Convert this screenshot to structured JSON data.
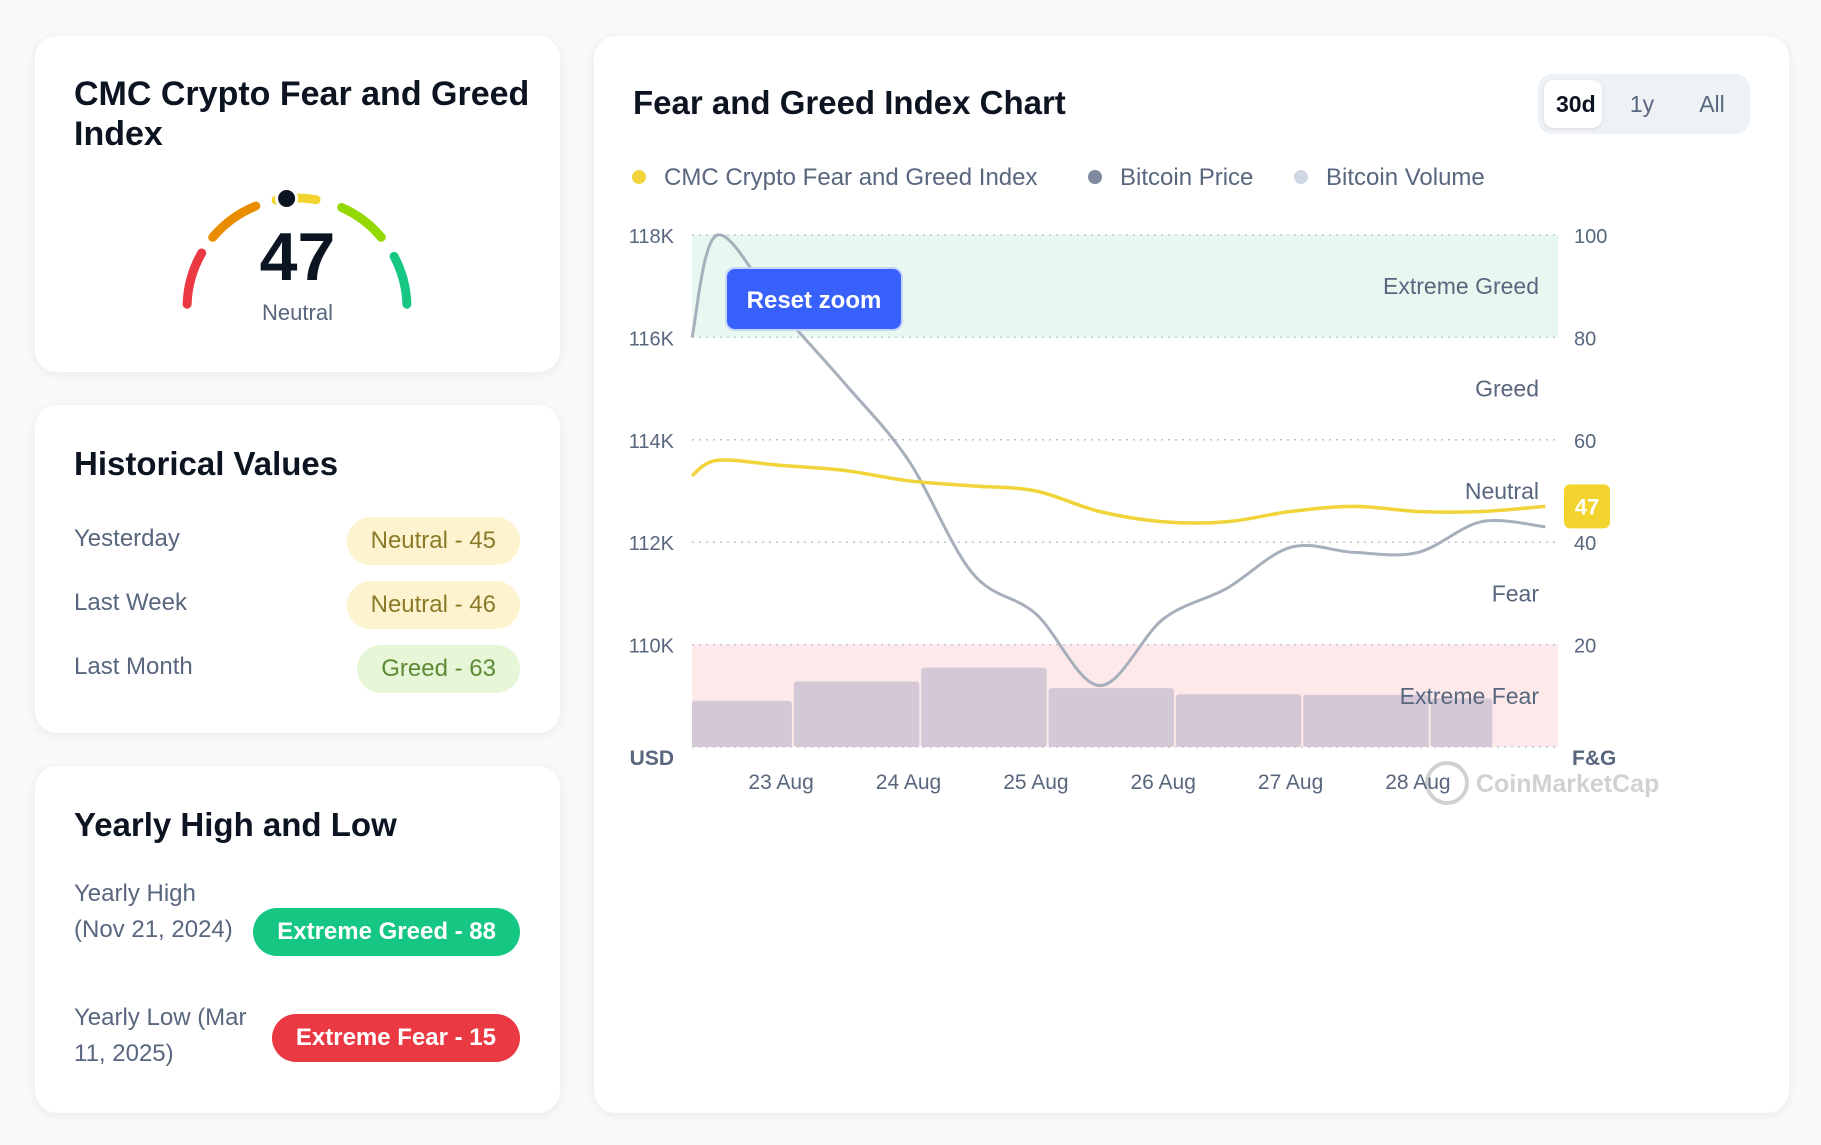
{
  "gauge_card": {
    "title": "CMC Crypto Fear and Greed Index",
    "value": "47",
    "label": "Neutral",
    "value_fraction": 0.47
  },
  "historical": {
    "title": "Historical Values",
    "rows": [
      {
        "label": "Yesterday",
        "value": "Neutral - 45",
        "kind": "neutral"
      },
      {
        "label": "Last Week",
        "value": "Neutral - 46",
        "kind": "neutral"
      },
      {
        "label": "Last Month",
        "value": "Greed - 63",
        "kind": "greed"
      }
    ]
  },
  "yearly": {
    "title": "Yearly High and Low",
    "high_label": "Yearly High (Nov 21, 2024)",
    "high_value": "Extreme Greed - 88",
    "low_label": "Yearly Low (Mar 11, 2025)",
    "low_value": "Extreme Fear - 15"
  },
  "chart_card": {
    "title": "Fear and Greed Index Chart",
    "ranges": [
      "30d",
      "1y",
      "All"
    ],
    "active_range": "30d",
    "reset_zoom": "Reset zoom",
    "watermark": "CoinMarketCap"
  },
  "colors": {
    "index_line": "#f0d43a",
    "price_line": "#a6afbb",
    "volume_bars": "#d4c7d6",
    "extreme_greed_zone": "#e7f8f0",
    "extreme_fear_zone": "#fde9e9",
    "reset_button": "#3861fb",
    "current_badge": "#f3d42e"
  },
  "chart_data": {
    "type": "line",
    "legend": [
      {
        "name": "CMC Crypto Fear and Greed Index",
        "color": "#f0d43a"
      },
      {
        "name": "Bitcoin Price",
        "color": "#808a9d"
      },
      {
        "name": "Bitcoin Volume",
        "color": "#cfd6e4"
      }
    ],
    "x_ticks": [
      "23 Aug",
      "24 Aug",
      "25 Aug",
      "26 Aug",
      "27 Aug",
      "28 Aug"
    ],
    "x": [
      22.3,
      22.5,
      23,
      23.5,
      24,
      24.5,
      25,
      25.5,
      26,
      26.5,
      27,
      27.5,
      28,
      28.5,
      29
    ],
    "left_axis": {
      "label": "USD",
      "ticks": [
        "118K",
        "116K",
        "114K",
        "112K",
        "110K"
      ],
      "ylim": [
        108000,
        118000
      ]
    },
    "right_axis": {
      "label": "F&G",
      "ticks": [
        "100",
        "80",
        "60",
        "40",
        "20"
      ],
      "ylim": [
        0,
        100
      ]
    },
    "zones": [
      {
        "label": "Extreme Greed",
        "from": 80,
        "to": 100
      },
      {
        "label": "Greed",
        "from": 60,
        "to": 80
      },
      {
        "label": "Neutral",
        "from": 40,
        "to": 60
      },
      {
        "label": "Fear",
        "from": 20,
        "to": 40
      },
      {
        "label": "Extreme Fear",
        "from": 0,
        "to": 20
      }
    ],
    "series": [
      {
        "name": "CMC Crypto Fear and Greed Index",
        "axis": "right",
        "values": [
          53,
          56,
          55,
          54,
          52,
          51,
          50,
          46,
          44,
          44,
          46,
          47,
          46,
          46,
          47
        ]
      },
      {
        "name": "Bitcoin Price",
        "axis": "left",
        "values": [
          116000,
          118000,
          116500,
          115100,
          113600,
          111400,
          110600,
          109200,
          110500,
          111100,
          111900,
          111800,
          111800,
          112400,
          112300
        ]
      }
    ],
    "volume": {
      "x_start": [
        22.3,
        23.1,
        24.1,
        25.1,
        26.1,
        27.1,
        28.1
      ],
      "x_end": [
        23.1,
        24.1,
        25.1,
        26.1,
        27.1,
        28.1,
        28.6
      ],
      "values": [
        9,
        12.8,
        15.5,
        11.5,
        10.3,
        10.2,
        9.5
      ]
    },
    "current_value": "47"
  }
}
